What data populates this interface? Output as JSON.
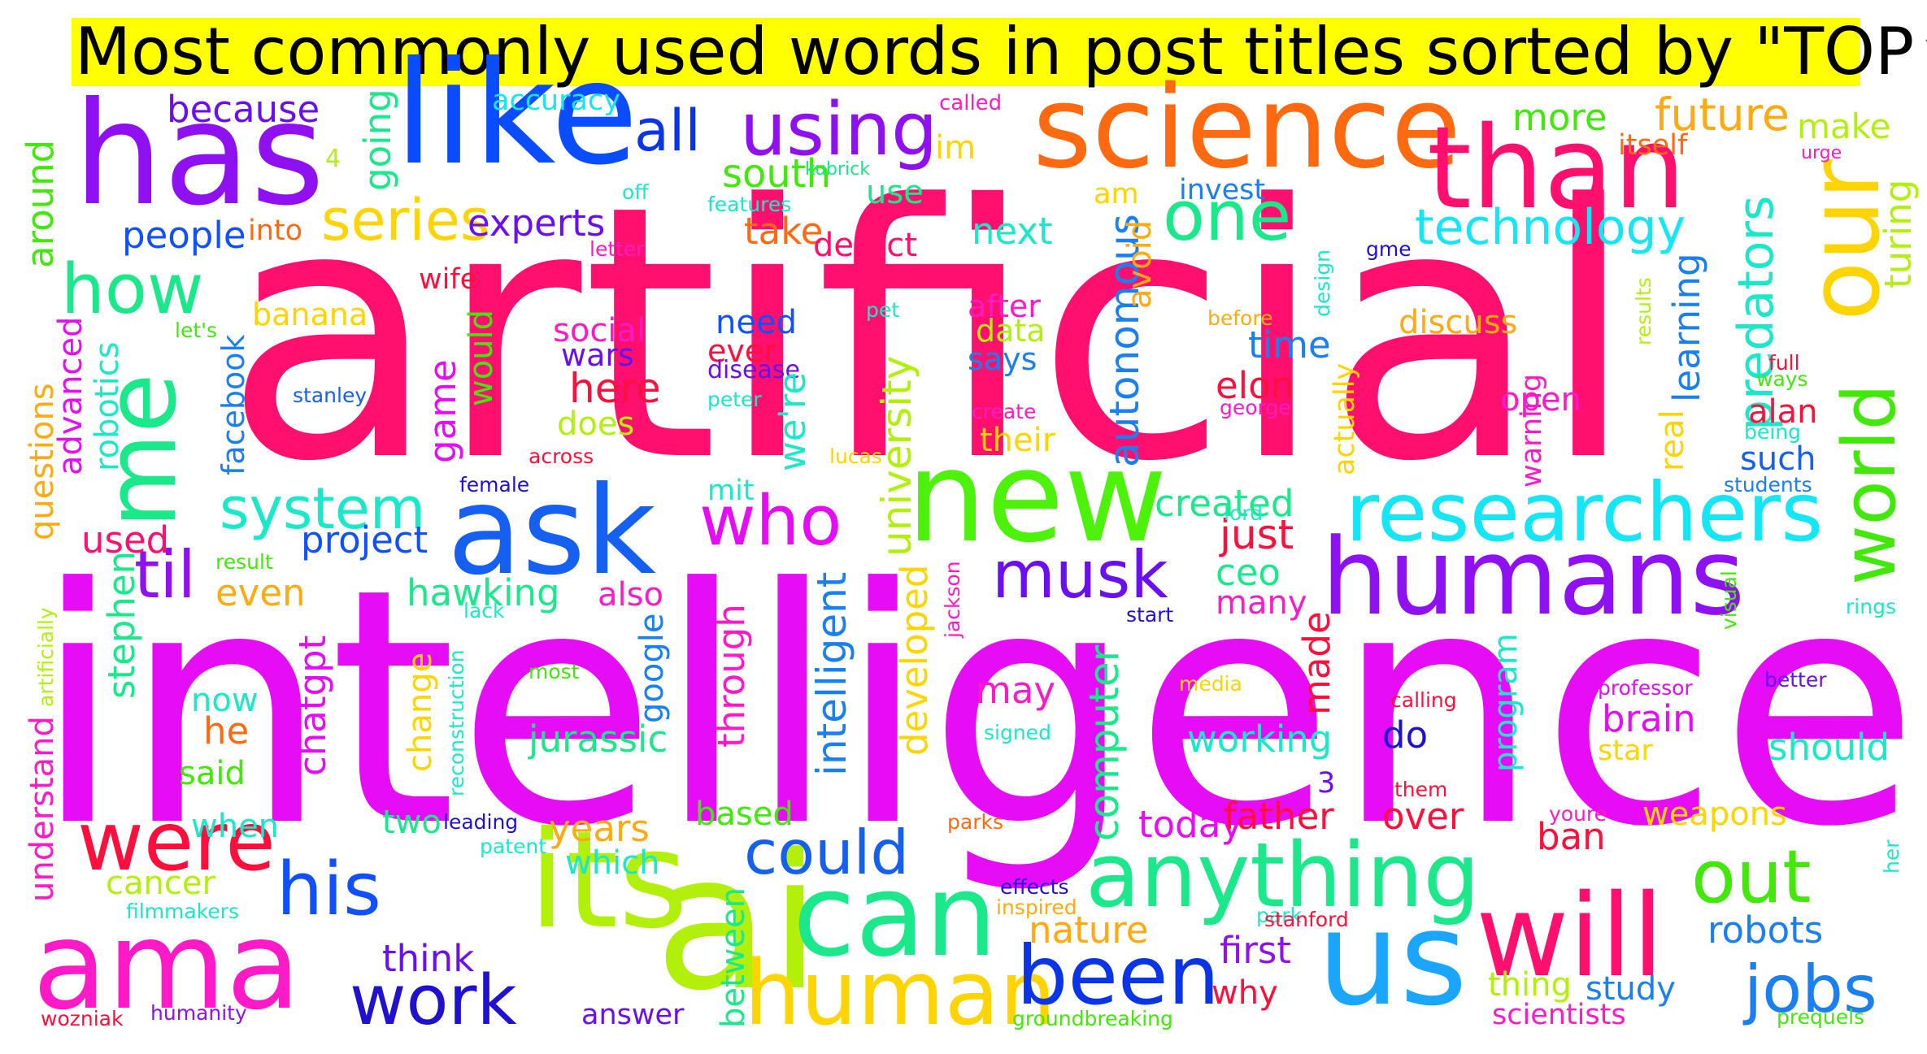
{
  "title": "Most commonly used words in post titles sorted by \"TOP⬆",
  "words": [
    {
      "text": "artificial",
      "color": "#ff0f6e"
    },
    {
      "text": "intelligence",
      "color": "#e60cf5"
    },
    {
      "text": "has",
      "color": "#8f10f0"
    },
    {
      "text": "like",
      "color": "#0a4cff"
    },
    {
      "text": "science",
      "color": "#ff6a10"
    },
    {
      "text": "than",
      "color": "#ff0f6e"
    },
    {
      "text": "our",
      "color": "#ffd400"
    },
    {
      "text": "me",
      "color": "#1be88a"
    },
    {
      "text": "new",
      "color": "#4cf20a"
    },
    {
      "text": "ask",
      "color": "#1560f0"
    },
    {
      "text": "humans",
      "color": "#8f10f0"
    },
    {
      "text": "researchers",
      "color": "#14e6f5"
    },
    {
      "text": "world",
      "color": "#42e80a"
    },
    {
      "text": "ai",
      "color": "#b2f00c"
    },
    {
      "text": "its",
      "color": "#b2f00c"
    },
    {
      "text": "ama",
      "color": "#ff1ac8"
    },
    {
      "text": "us",
      "color": "#1aa6ff"
    },
    {
      "text": "will",
      "color": "#ff0f6e"
    },
    {
      "text": "can",
      "color": "#1be88a"
    },
    {
      "text": "human",
      "color": "#ffd400"
    },
    {
      "text": "anything",
      "color": "#1be88a"
    },
    {
      "text": "were",
      "color": "#ff0f3c"
    },
    {
      "text": "his",
      "color": "#1050ff"
    },
    {
      "text": "been",
      "color": "#0a35e6"
    },
    {
      "text": "work",
      "color": "#2010d0"
    },
    {
      "text": "could",
      "color": "#1560f0"
    },
    {
      "text": "out",
      "color": "#42e80a"
    },
    {
      "text": "jobs",
      "color": "#1a7ff0"
    },
    {
      "text": "musk",
      "color": "#6a10f0"
    },
    {
      "text": "who",
      "color": "#e60cf5"
    },
    {
      "text": "til",
      "color": "#8f10f0"
    },
    {
      "text": "system",
      "color": "#1be8c8"
    },
    {
      "text": "how",
      "color": "#1be88a"
    },
    {
      "text": "series",
      "color": "#ffd400"
    },
    {
      "text": "one",
      "color": "#1be88a"
    },
    {
      "text": "using",
      "color": "#8f10f0"
    },
    {
      "text": "all",
      "color": "#0a35e6"
    },
    {
      "text": "technology",
      "color": "#14e6f5"
    },
    {
      "text": "future",
      "color": "#ffaa10"
    },
    {
      "text": "more",
      "color": "#42e80a"
    },
    {
      "text": "make",
      "color": "#b2f00c"
    },
    {
      "text": "itself",
      "color": "#ff6a10"
    },
    {
      "text": "urge",
      "color": "#ff1ac8"
    },
    {
      "text": "because",
      "color": "#6a10f0"
    },
    {
      "text": "accuracy",
      "color": "#14e6f5"
    },
    {
      "text": "called",
      "color": "#ff1ac8"
    },
    {
      "text": "people",
      "color": "#1050ff"
    },
    {
      "text": "experts",
      "color": "#6a10f0"
    },
    {
      "text": "south",
      "color": "#42e80a"
    },
    {
      "text": "into",
      "color": "#ff6a10"
    },
    {
      "text": "take",
      "color": "#ff6a10"
    },
    {
      "text": "detect",
      "color": "#ff0f6e"
    },
    {
      "text": "next",
      "color": "#1be8c8"
    },
    {
      "text": "invest",
      "color": "#1a7ff0"
    },
    {
      "text": "am",
      "color": "#ffd400"
    },
    {
      "text": "im",
      "color": "#ffd400"
    },
    {
      "text": "use",
      "color": "#1be88a"
    },
    {
      "text": "kubrick",
      "color": "#1be88a"
    },
    {
      "text": "features",
      "color": "#1be8c8"
    },
    {
      "text": "off",
      "color": "#1be8c8"
    },
    {
      "text": "letter",
      "color": "#ff1ac8"
    },
    {
      "text": "4",
      "color": "#b2f00c"
    },
    {
      "text": "going",
      "color": "#1be88a"
    },
    {
      "text": "around",
      "color": "#42e80a"
    },
    {
      "text": "wife",
      "color": "#ff0f3c"
    },
    {
      "text": "banana",
      "color": "#ffd400"
    },
    {
      "text": "let's",
      "color": "#42e80a"
    },
    {
      "text": "facebook",
      "color": "#1a7ff0"
    },
    {
      "text": "game",
      "color": "#e60cf5"
    },
    {
      "text": "would",
      "color": "#42e80a"
    },
    {
      "text": "social",
      "color": "#ff1ac8"
    },
    {
      "text": "wars",
      "color": "#6a10f0"
    },
    {
      "text": "need",
      "color": "#1050ff"
    },
    {
      "text": "ever",
      "color": "#ff0f3c"
    },
    {
      "text": "here",
      "color": "#ff0f3c"
    },
    {
      "text": "pet",
      "color": "#1be8c8"
    },
    {
      "text": "after",
      "color": "#ff1ac8"
    },
    {
      "text": "data",
      "color": "#b2f00c"
    },
    {
      "text": "says",
      "color": "#1a7ff0"
    },
    {
      "text": "their",
      "color": "#ffd400"
    },
    {
      "text": "create",
      "color": "#ff1ac8"
    },
    {
      "text": "autonomous",
      "color": "#1a7ff0"
    },
    {
      "text": "avoid",
      "color": "#ffaa10"
    },
    {
      "text": "before",
      "color": "#ffaa10"
    },
    {
      "text": "time",
      "color": "#1a7ff0"
    },
    {
      "text": "elon",
      "color": "#ff0f3c"
    },
    {
      "text": "george",
      "color": "#ff1ac8"
    },
    {
      "text": "discuss",
      "color": "#ffaa10"
    },
    {
      "text": "design",
      "color": "#1be8c8"
    },
    {
      "text": "gme",
      "color": "#2010d0"
    },
    {
      "text": "learning",
      "color": "#1a7ff0"
    },
    {
      "text": "predators",
      "color": "#1be8c8"
    },
    {
      "text": "turing",
      "color": "#b2f00c"
    },
    {
      "text": "full",
      "color": "#ff0f3c"
    },
    {
      "text": "ways",
      "color": "#42e80a"
    },
    {
      "text": "results",
      "color": "#b2f00c"
    },
    {
      "text": "open",
      "color": "#ff1ac8"
    },
    {
      "text": "real",
      "color": "#ffd400"
    },
    {
      "text": "being",
      "color": "#1be8c8"
    },
    {
      "text": "alan",
      "color": "#ff0f3c"
    },
    {
      "text": "such",
      "color": "#1560f0"
    },
    {
      "text": "students",
      "color": "#1a7ff0"
    },
    {
      "text": "warning",
      "color": "#ff1ac8"
    },
    {
      "text": "actually",
      "color": "#ffd400"
    },
    {
      "text": "questions",
      "color": "#ffaa10"
    },
    {
      "text": "advanced",
      "color": "#e60cf5"
    },
    {
      "text": "robotics",
      "color": "#1be8c8"
    },
    {
      "text": "stanley",
      "color": "#1560f0"
    },
    {
      "text": "disease",
      "color": "#6a10f0"
    },
    {
      "text": "peter",
      "color": "#1be8c8"
    },
    {
      "text": "we're",
      "color": "#1be8c8"
    },
    {
      "text": "does",
      "color": "#b2f00c"
    },
    {
      "text": "across",
      "color": "#ff0f3c"
    },
    {
      "text": "lucas",
      "color": "#ffd400"
    },
    {
      "text": "mit",
      "color": "#1be8c8"
    },
    {
      "text": "female",
      "color": "#2010d0"
    },
    {
      "text": "project",
      "color": "#1050ff"
    },
    {
      "text": "university",
      "color": "#b2f00c"
    },
    {
      "text": "created",
      "color": "#1be88a"
    },
    {
      "text": "just",
      "color": "#ff0f3c"
    },
    {
      "text": "lord",
      "color": "#1be8c8"
    },
    {
      "text": "ceo",
      "color": "#1be88a"
    },
    {
      "text": "many",
      "color": "#ff1ac8"
    },
    {
      "text": "used",
      "color": "#ff0f6e"
    },
    {
      "text": "result",
      "color": "#42e80a"
    },
    {
      "text": "even",
      "color": "#ffaa10"
    },
    {
      "text": "hawking",
      "color": "#1be88a"
    },
    {
      "text": "also",
      "color": "#ff1ac8"
    },
    {
      "text": "lack",
      "color": "#1be8c8"
    },
    {
      "text": "stephen",
      "color": "#1be88a"
    },
    {
      "text": "intelligent",
      "color": "#1a7ff0"
    },
    {
      "text": "through",
      "color": "#ff1ac8"
    },
    {
      "text": "google",
      "color": "#1a7ff0"
    },
    {
      "text": "developed",
      "color": "#ffd400"
    },
    {
      "text": "jackson",
      "color": "#ff1ac8"
    },
    {
      "text": "start",
      "color": "#2010d0"
    },
    {
      "text": "artificially",
      "color": "#b2f00c"
    },
    {
      "text": "understand",
      "color": "#ff1ac8"
    },
    {
      "text": "chatgpt",
      "color": "#e60cf5"
    },
    {
      "text": "now",
      "color": "#1be8c8"
    },
    {
      "text": "he",
      "color": "#ff6a10"
    },
    {
      "text": "said",
      "color": "#42e80a"
    },
    {
      "text": "change",
      "color": "#ffd400"
    },
    {
      "text": "reconstruction",
      "color": "#1be8c8"
    },
    {
      "text": "most",
      "color": "#42e80a"
    },
    {
      "text": "jurassic",
      "color": "#1be88a"
    },
    {
      "text": "computer",
      "color": "#1be88a"
    },
    {
      "text": "media",
      "color": "#ffd400"
    },
    {
      "text": "signed",
      "color": "#1be8c8"
    },
    {
      "text": "may",
      "color": "#ff1ac8"
    },
    {
      "text": "made",
      "color": "#ff0f3c"
    },
    {
      "text": "calling",
      "color": "#ff0f3c"
    },
    {
      "text": "working",
      "color": "#1be8c8"
    },
    {
      "text": "do",
      "color": "#2010d0"
    },
    {
      "text": "3",
      "color": "#6a10f0"
    },
    {
      "text": "them",
      "color": "#ff0f3c"
    },
    {
      "text": "program",
      "color": "#1be8c8"
    },
    {
      "text": "professor",
      "color": "#e60cf5"
    },
    {
      "text": "better",
      "color": "#6a10f0"
    },
    {
      "text": "brain",
      "color": "#e60cf5"
    },
    {
      "text": "star",
      "color": "#ffd400"
    },
    {
      "text": "should",
      "color": "#1be8c8"
    },
    {
      "text": "visual",
      "color": "#42e80a"
    },
    {
      "text": "rings",
      "color": "#1be8c8"
    },
    {
      "text": "when",
      "color": "#1be8c8"
    },
    {
      "text": "two",
      "color": "#1be88a"
    },
    {
      "text": "leading",
      "color": "#2010d0"
    },
    {
      "text": "patent",
      "color": "#1be8c8"
    },
    {
      "text": "years",
      "color": "#ffaa10"
    },
    {
      "text": "which",
      "color": "#1be8c8"
    },
    {
      "text": "based",
      "color": "#42e80a"
    },
    {
      "text": "parks",
      "color": "#ff6a10"
    },
    {
      "text": "today",
      "color": "#e60cf5"
    },
    {
      "text": "father",
      "color": "#ff0f3c"
    },
    {
      "text": "over",
      "color": "#ff0f3c"
    },
    {
      "text": "ban",
      "color": "#ff0f3c"
    },
    {
      "text": "youre",
      "color": "#ff1ac8"
    },
    {
      "text": "weapons",
      "color": "#ffd400"
    },
    {
      "text": "her",
      "color": "#1be8c8"
    },
    {
      "text": "cancer",
      "color": "#b2f00c"
    },
    {
      "text": "filmmakers",
      "color": "#1be8c8"
    },
    {
      "text": "between",
      "color": "#1be88a"
    },
    {
      "text": "effects",
      "color": "#2010d0"
    },
    {
      "text": "inspired",
      "color": "#ffaa10"
    },
    {
      "text": "nature",
      "color": "#ffaa10"
    },
    {
      "text": "park",
      "color": "#1be8c8"
    },
    {
      "text": "stanford",
      "color": "#ff0f3c"
    },
    {
      "text": "think",
      "color": "#6a10f0"
    },
    {
      "text": "first",
      "color": "#8f10f0"
    },
    {
      "text": "why",
      "color": "#ff0f3c"
    },
    {
      "text": "robots",
      "color": "#1a7ff0"
    },
    {
      "text": "wozniak",
      "color": "#ff0f3c"
    },
    {
      "text": "humanity",
      "color": "#8f10f0"
    },
    {
      "text": "answer",
      "color": "#6a10f0"
    },
    {
      "text": "groundbreaking",
      "color": "#42e80a"
    },
    {
      "text": "thing",
      "color": "#b2f00c"
    },
    {
      "text": "study",
      "color": "#1a7ff0"
    },
    {
      "text": "scientists",
      "color": "#ff1ac8"
    },
    {
      "text": "prequels",
      "color": "#42e80a"
    }
  ]
}
